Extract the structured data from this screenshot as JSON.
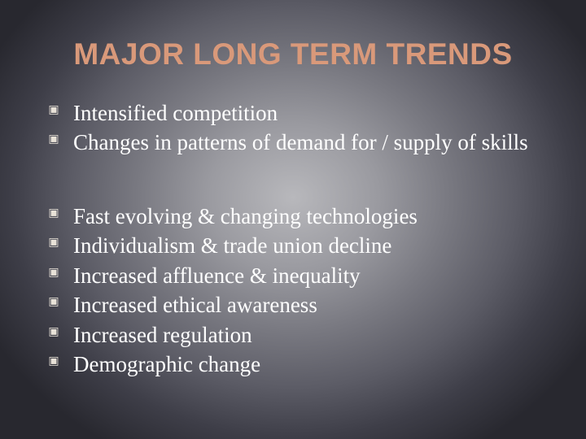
{
  "slide": {
    "title": "MAJOR LONG TERM TRENDS",
    "title_color": "#d9997a",
    "title_fontsize": 37,
    "body_color": "#ffffff",
    "body_fontsize": 27,
    "bullet_glyph": "▣",
    "bullet_color": "#e8e2d8",
    "bullet_fontsize": 14,
    "background_gradient": {
      "center_color": "#b8b8bc",
      "edge_color": "#28282f"
    },
    "groups": [
      {
        "items": [
          "Intensified competition",
          "Changes in patterns of demand for / supply of skills"
        ]
      },
      {
        "items": [
          "Fast evolving & changing technologies",
          "Individualism  & trade union decline",
          "Increased affluence & inequality",
          "Increased ethical awareness",
          "Increased regulation",
          "Demographic change"
        ]
      }
    ]
  }
}
